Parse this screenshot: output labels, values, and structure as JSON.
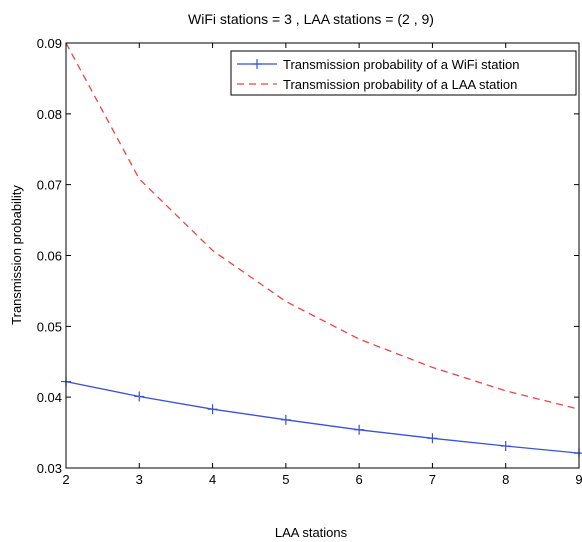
{
  "chart_data": {
    "type": "line",
    "title": "WiFi stations = 3 , LAA stations = (2 , 9)",
    "xlabel": "LAA stations",
    "ylabel": "Transmission probability",
    "xlim": [
      2,
      9
    ],
    "ylim": [
      0.03,
      0.09
    ],
    "x_ticks": [
      "2",
      "3",
      "4",
      "5",
      "6",
      "7",
      "8",
      "9"
    ],
    "y_ticks": [
      "0.03",
      "0.04",
      "0.05",
      "0.06",
      "0.07",
      "0.08",
      "0.09"
    ],
    "grid": false,
    "legend_position": "top-right",
    "x": [
      2,
      3,
      4,
      5,
      6,
      7,
      8,
      9
    ],
    "series": [
      {
        "name": "Transmission probability of a WiFi station",
        "values": [
          0.0422,
          0.0401,
          0.0383,
          0.0368,
          0.0354,
          0.0342,
          0.0331,
          0.0321
        ],
        "color": "#3a52d6",
        "style": "solid",
        "marker": "plus"
      },
      {
        "name": "Transmission probability of a LAA station",
        "values": [
          0.09,
          0.0708,
          0.0607,
          0.0535,
          0.0482,
          0.0442,
          0.0409,
          0.0383
        ],
        "color": "#ee4444",
        "style": "dashed",
        "marker": "none"
      }
    ]
  }
}
